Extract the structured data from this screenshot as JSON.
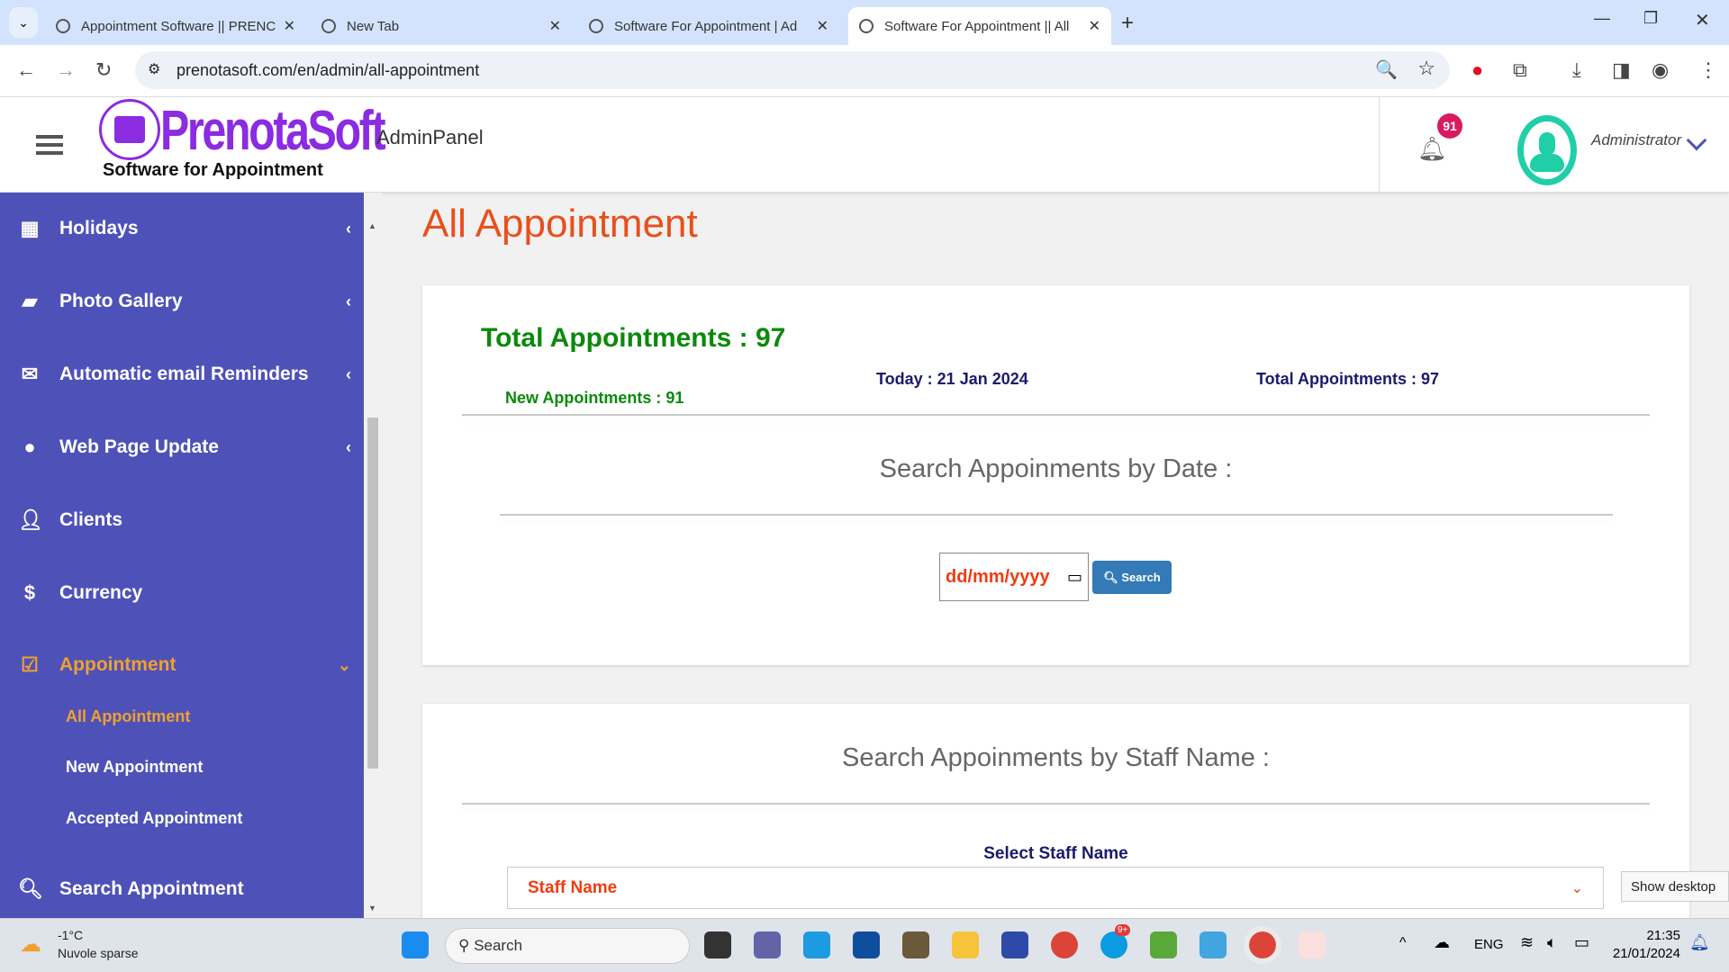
{
  "browser": {
    "tabs": [
      {
        "title": "Appointment Software || PRENC",
        "active": false
      },
      {
        "title": "New Tab",
        "active": false
      },
      {
        "title": "Software For Appointment | Ad",
        "active": false
      },
      {
        "title": "Software For Appointment || All",
        "active": true
      }
    ],
    "new_tab": "+",
    "url": "prenotasoft.com/en/admin/all-appointment"
  },
  "header": {
    "logo_text": "PrenotaSoft",
    "logo_tagline": "Software for Appointment",
    "panel": "AdminPanel",
    "notifications": "91",
    "user": "Administrator"
  },
  "sidebar": {
    "items": [
      {
        "label": "Holidays",
        "icon": "calendar-icon"
      },
      {
        "label": "Photo Gallery",
        "icon": "book-icon"
      },
      {
        "label": "Automatic email Reminders",
        "icon": "envelope-icon"
      },
      {
        "label": "Web Page Update",
        "icon": "globe-icon"
      },
      {
        "label": "Clients",
        "icon": "user-icon"
      },
      {
        "label": "Currency",
        "icon": "dollar-icon"
      },
      {
        "label": "Appointment",
        "icon": "check-square-icon",
        "active": true
      },
      {
        "label": "Search Appointment",
        "icon": "search-icon"
      }
    ],
    "sub_items": [
      {
        "label": "All Appointment",
        "active": true
      },
      {
        "label": "New Appointment"
      },
      {
        "label": "Accepted Appointment"
      }
    ]
  },
  "main": {
    "title": "All Appointment",
    "total_heading": "Total Appointments : 97",
    "new_appointments": "New Appointments : 91",
    "today": "Today : 21 Jan 2024",
    "total_right": "Total Appointments : 97",
    "date_search_title": "Search Appoinments by Date :",
    "date_placeholder": "dd/mm/yyyy",
    "search_button": "Search",
    "staff_search_title": "Search Appoinments by Staff Name :",
    "staff_label": "Select Staff Name",
    "staff_select": "Staff Name"
  },
  "taskbar": {
    "weather_temp": "-1°C",
    "weather_desc": "Nuvole sparse",
    "search": "Search",
    "lang": "ENG",
    "time": "21:35",
    "date": "21/01/2024",
    "show_desktop": "Show desktop",
    "badge": "9+"
  },
  "colors": {
    "sidebar": "#4e52b8",
    "accent": "#f0a030",
    "title": "#e8501c",
    "green": "#0a8a0a",
    "navy": "#1a1a6e",
    "button": "#337ab7",
    "avatar": "#20cfa8",
    "badge": "#d81b60"
  }
}
